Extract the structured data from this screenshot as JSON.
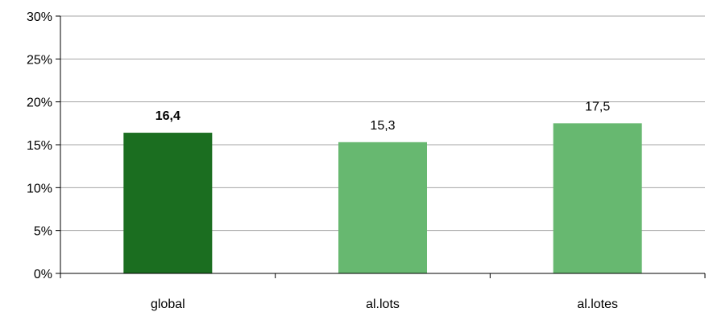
{
  "chart_data": {
    "type": "bar",
    "title": "",
    "xlabel": "",
    "ylabel": "",
    "categories": [
      "global",
      "al.lots",
      "al.lotes"
    ],
    "values": [
      16.4,
      15.3,
      17.5
    ],
    "value_labels": [
      "16,4",
      "15,3",
      "17,5"
    ],
    "ylim": [
      0,
      30
    ],
    "y_ticks": [
      0,
      5,
      10,
      15,
      20,
      25,
      30
    ],
    "y_tick_labels": [
      "0%",
      "5%",
      "10%",
      "15%",
      "20%",
      "25%",
      "30%"
    ],
    "grid": true,
    "legend": "none",
    "bar_colors": [
      "#1b6e20",
      "#67b870",
      "#67b870"
    ],
    "bold_labels": [
      true,
      false,
      false
    ]
  }
}
